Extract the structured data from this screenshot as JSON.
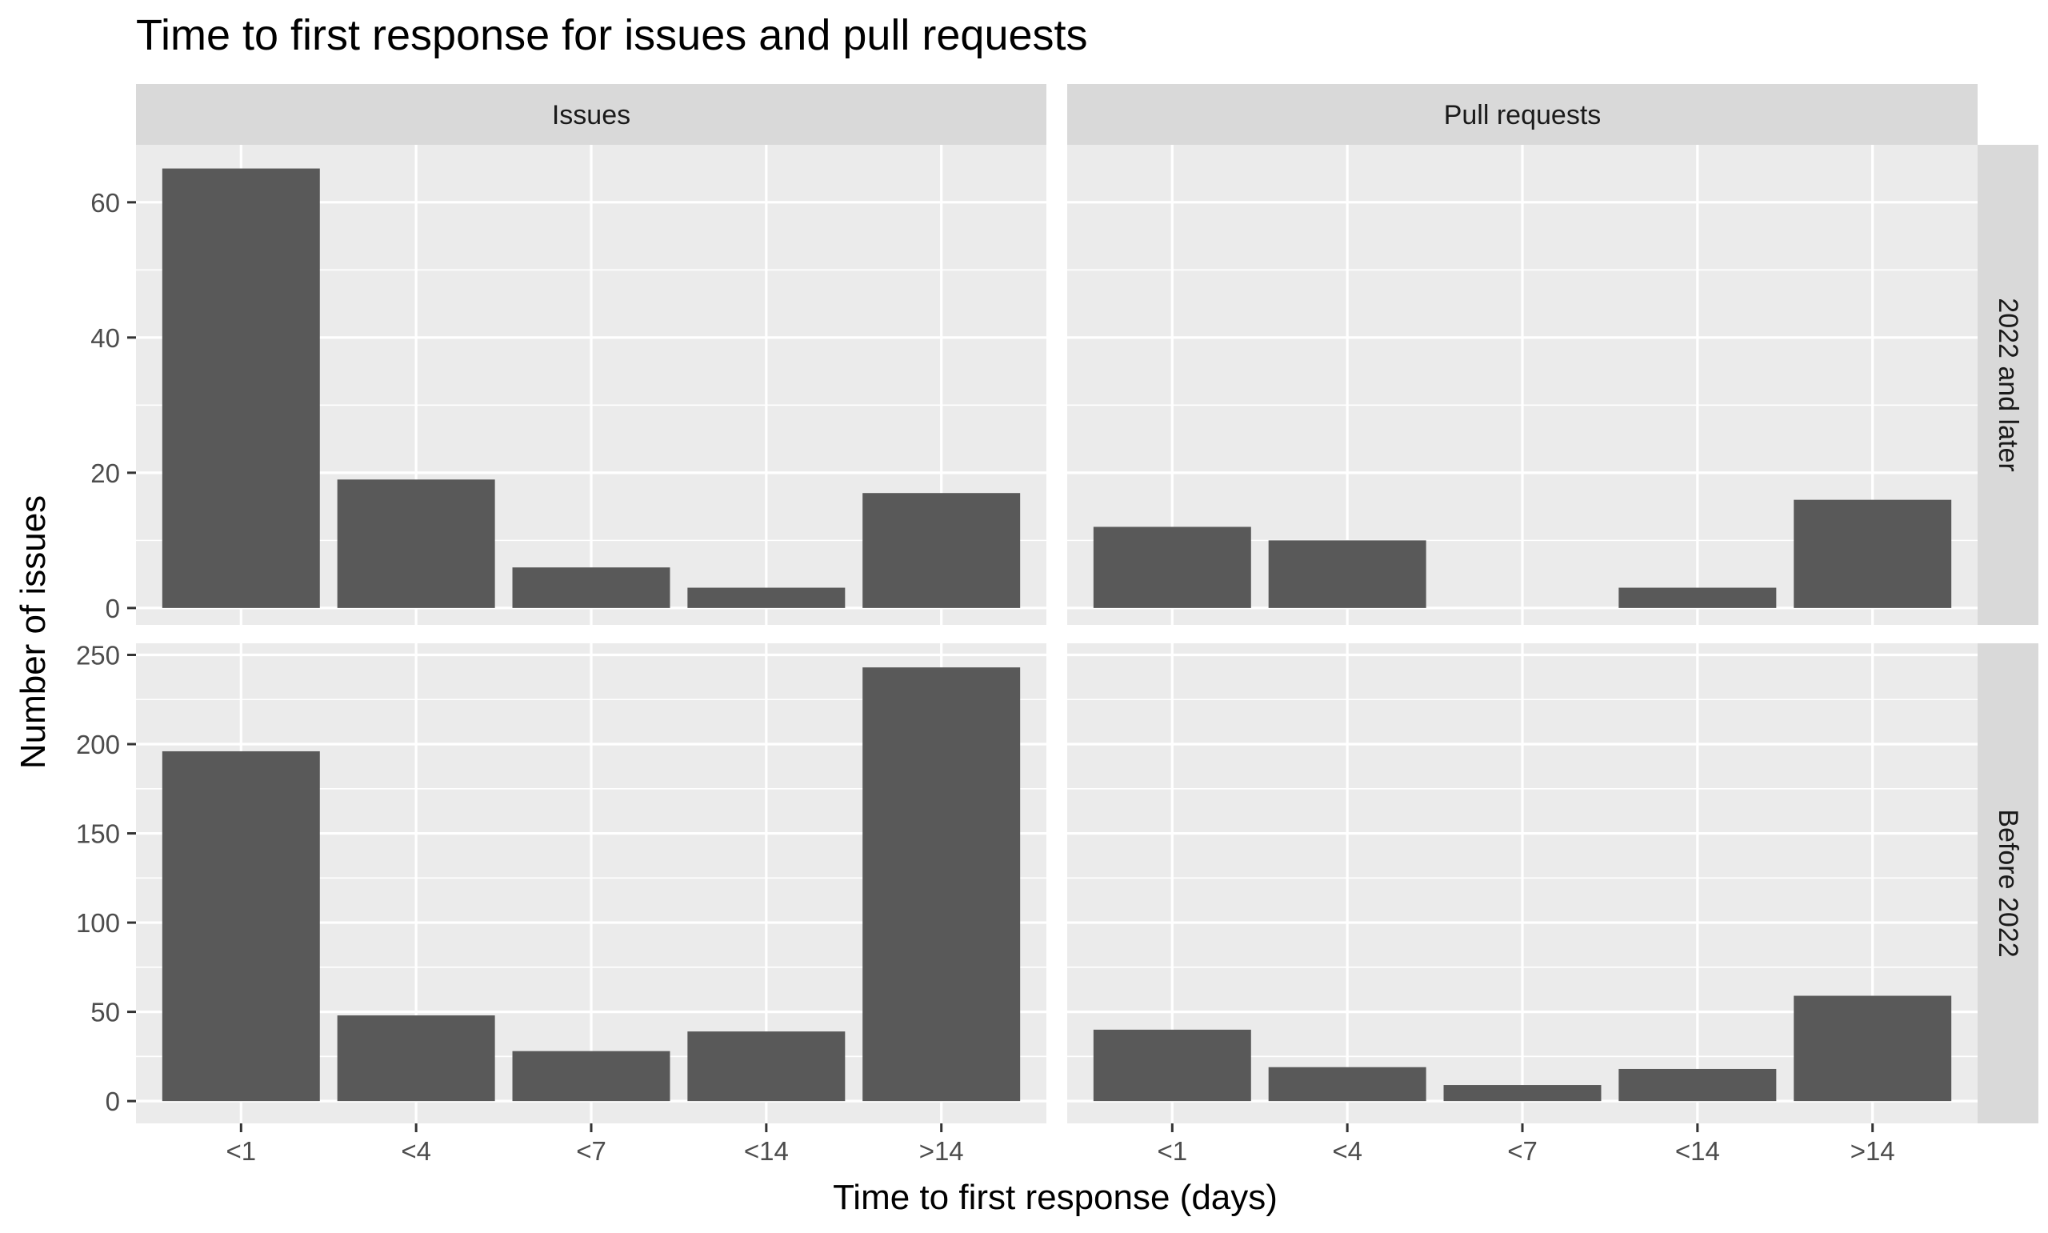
{
  "chart_data": {
    "type": "bar",
    "title": "Time to first response for issues and pull requests",
    "xlabel": "Time to first response (days)",
    "ylabel": "Number of issues",
    "categories": [
      "<1",
      "<4",
      "<7",
      "<14",
      ">14"
    ],
    "column_facets": [
      "Issues",
      "Pull requests"
    ],
    "row_facets": [
      "2022 and later",
      "Before 2022"
    ],
    "panels": [
      {
        "row": "2022 and later",
        "column": "Issues",
        "values": [
          65,
          19,
          6,
          3,
          17
        ]
      },
      {
        "row": "2022 and later",
        "column": "Pull requests",
        "values": [
          12,
          10,
          0,
          3,
          16
        ]
      },
      {
        "row": "Before 2022",
        "column": "Issues",
        "values": [
          196,
          48,
          28,
          39,
          243
        ]
      },
      {
        "row": "Before 2022",
        "column": "Pull requests",
        "values": [
          40,
          19,
          9,
          18,
          59
        ]
      }
    ],
    "row_scales": [
      {
        "row": "2022 and later",
        "ylim": [
          -2.5,
          68.5
        ],
        "ticks": [
          0,
          20,
          40,
          60
        ],
        "minor": [
          10,
          30,
          50
        ]
      },
      {
        "row": "Before 2022",
        "ylim": [
          -12.5,
          256.5
        ],
        "ticks": [
          0,
          50,
          100,
          150,
          200,
          250
        ],
        "minor": [
          25,
          75,
          125,
          175,
          225
        ]
      }
    ],
    "grid": true,
    "colors": {
      "bar": "#595959",
      "panel_background": "#ebebeb",
      "strip_background": "#d9d9d9",
      "gridline": "#ffffff"
    }
  }
}
